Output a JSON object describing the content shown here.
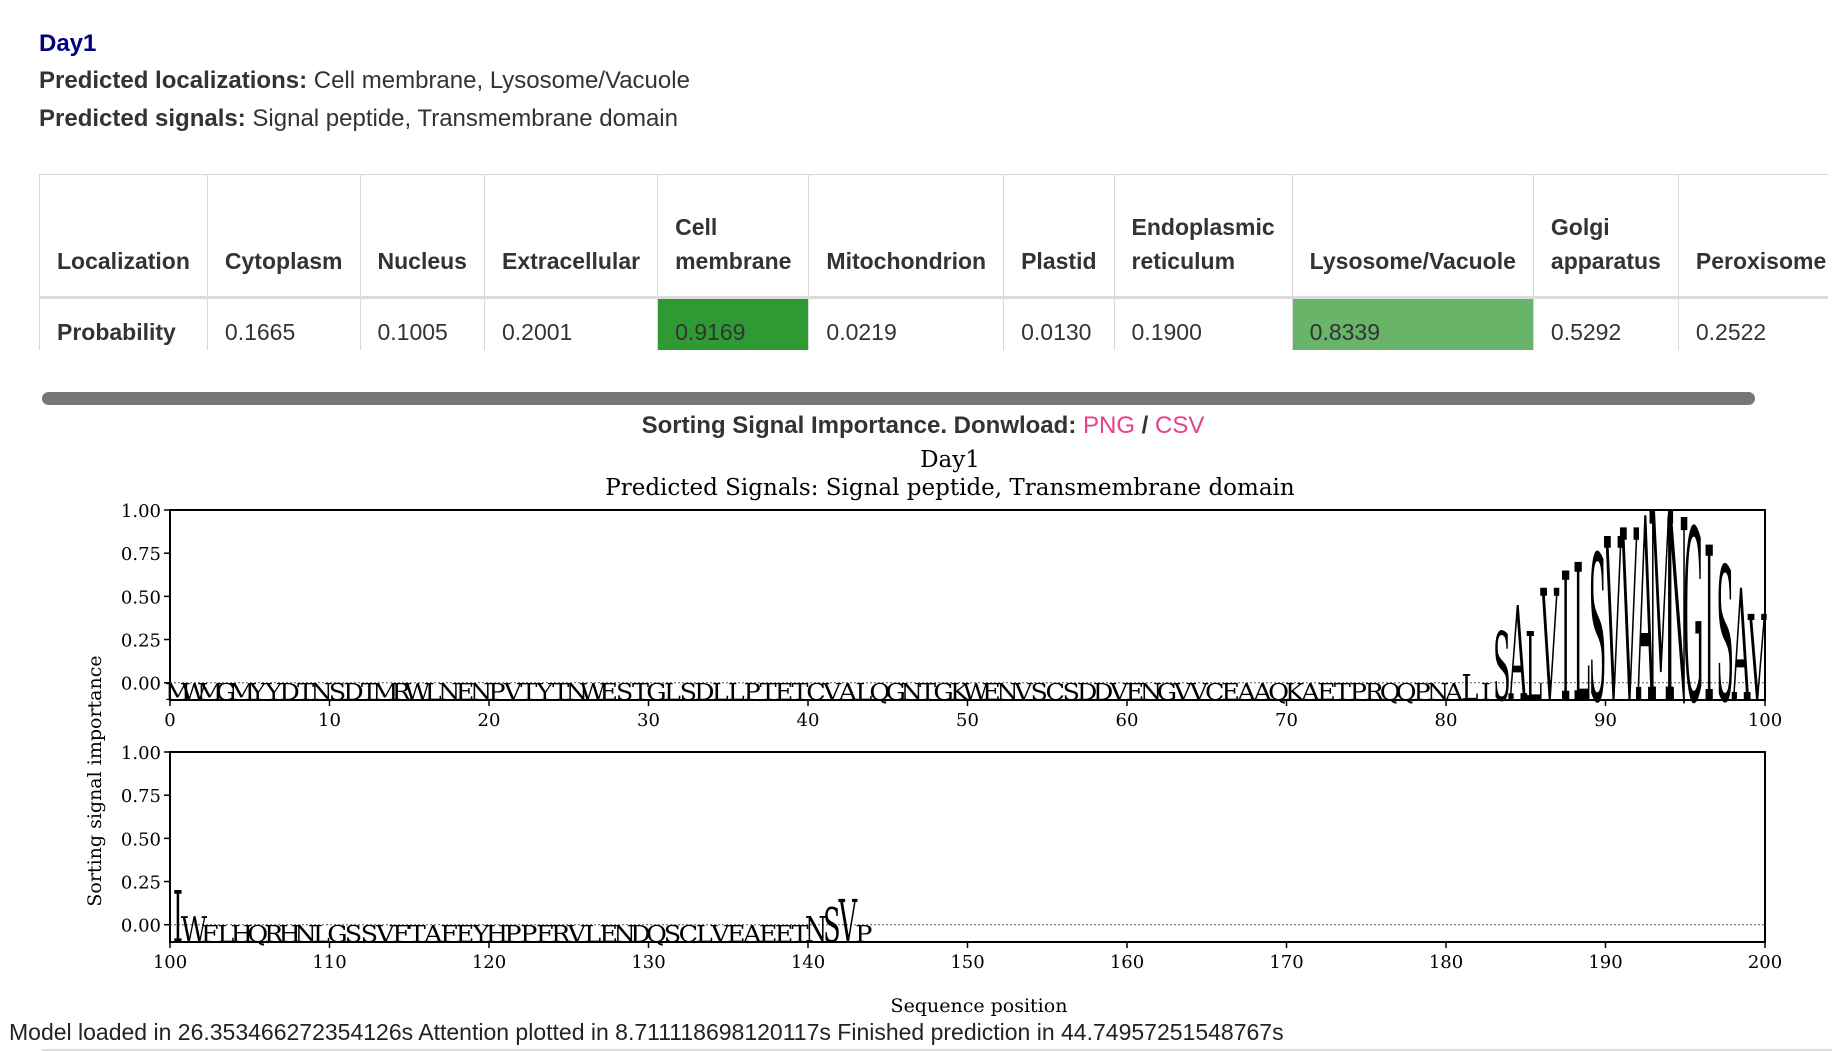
{
  "sample": {
    "title": "Day1",
    "localizations_label": "Predicted localizations:",
    "localizations_value": "Cell membrane, Lysosome/Vacuole",
    "signals_label": "Predicted signals:",
    "signals_value": "Signal peptide, Transmembrane domain"
  },
  "table": {
    "row_header": "Localization",
    "prob_header": "Probability",
    "columns": [
      {
        "name_lines": [
          "Cytoplasm"
        ],
        "prob": "0.1665",
        "highlight": ""
      },
      {
        "name_lines": [
          "Nucleus"
        ],
        "prob": "0.1005",
        "highlight": ""
      },
      {
        "name_lines": [
          "Extracellular"
        ],
        "prob": "0.2001",
        "highlight": ""
      },
      {
        "name_lines": [
          "Cell",
          "membrane"
        ],
        "prob": "0.9169",
        "highlight": "#2f9a34"
      },
      {
        "name_lines": [
          "Mitochondrion"
        ],
        "prob": "0.0219",
        "highlight": ""
      },
      {
        "name_lines": [
          "Plastid"
        ],
        "prob": "0.0130",
        "highlight": ""
      },
      {
        "name_lines": [
          "Endoplasmic",
          "reticulum"
        ],
        "prob": "0.1900",
        "highlight": ""
      },
      {
        "name_lines": [
          "Lysosome/Vacuole"
        ],
        "prob": "0.8339",
        "highlight": "#68b468"
      },
      {
        "name_lines": [
          "Golgi",
          "apparatus"
        ],
        "prob": "0.5292",
        "highlight": ""
      },
      {
        "name_lines": [
          "Peroxisome"
        ],
        "prob": "0.2522",
        "highlight": ""
      }
    ]
  },
  "download": {
    "label": "Sorting Signal Importance. Donwload:",
    "png": "PNG",
    "sep": "/",
    "csv": "CSV"
  },
  "chart_data": {
    "type": "sequence-logo",
    "title": "Day1",
    "subtitle": "Predicted Signals: Signal peptide, Transmembrane domain",
    "ylabel": "Sorting signal importance",
    "xlabel": "Sequence position",
    "ylim": [
      -0.1,
      1.0
    ],
    "yticks": [
      "0.00",
      "0.25",
      "0.50",
      "0.75",
      "1.00"
    ],
    "panels": [
      {
        "xlim": [
          0,
          100
        ],
        "xticks": [
          0,
          10,
          20,
          30,
          40,
          50,
          60,
          70,
          80,
          90,
          100
        ]
      },
      {
        "xlim": [
          100,
          200
        ],
        "xticks": [
          100,
          110,
          120,
          130,
          140,
          150,
          160,
          170,
          180,
          190,
          200
        ]
      }
    ],
    "colors": {
      "hydrophobic": "#f4a460",
      "polar": "#add8e6",
      "positive": "#2166ac",
      "negative": "#f08080",
      "special": "#d7191c"
    },
    "sequence": "MWMGMYYDTNSDTMRWLNENPVTYTNWESTGLSDLLPTETCVALQGNTGKWENVSCSDDVENGVVCEAAQKAETPRQQPNALISALVILSVVAMNGISAVIWFLHQRHNLGSSVFTAFEYHPPFRVLENDQSCLVEAEETNSVP",
    "importance": [
      [
        0,
        0.0
      ],
      [
        81,
        0.0
      ],
      [
        82,
        0.05
      ],
      [
        83,
        0.0
      ],
      [
        84,
        0.3
      ],
      [
        85,
        0.45
      ],
      [
        86,
        0.3
      ],
      [
        87,
        0.55
      ],
      [
        88,
        0.65
      ],
      [
        89,
        0.7
      ],
      [
        90,
        0.75
      ],
      [
        91,
        0.85
      ],
      [
        92,
        0.9
      ],
      [
        93,
        0.97
      ],
      [
        94,
        1.0
      ],
      [
        95,
        0.96
      ],
      [
        96,
        0.9
      ],
      [
        97,
        0.8
      ],
      [
        98,
        0.68
      ],
      [
        99,
        0.55
      ],
      [
        100,
        0.4
      ],
      [
        101,
        0.2
      ],
      [
        102,
        0.05
      ],
      [
        103,
        0.0
      ],
      [
        140,
        0.0
      ],
      [
        141,
        0.05
      ],
      [
        142,
        0.1
      ],
      [
        143,
        0.15
      ],
      [
        144,
        0.0
      ]
    ]
  },
  "timing": "Model loaded in 26.353466272354126s Attention plotted in 8.711118698120117s Finished prediction in 44.74957251548767s"
}
